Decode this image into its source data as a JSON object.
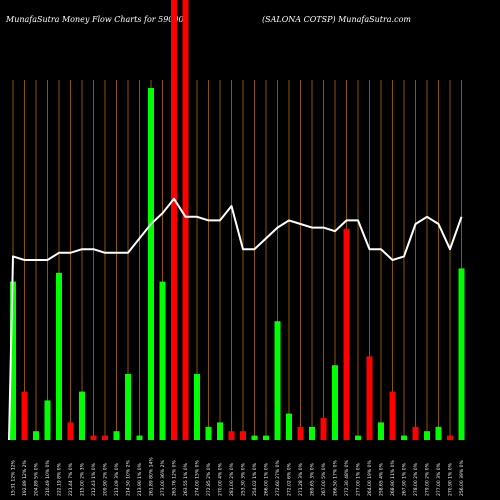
{
  "header": {
    "left_title": "MunafaSutra  Money Flow  Charts for 590006",
    "right_title": "(SALONA COTSP) MunafaSutra.com"
  },
  "colors": {
    "background": "#000000",
    "gridline": "#b36b00",
    "up_bar": "#00ff00",
    "down_bar": "#ff0000",
    "line": "#ffffff"
  },
  "chart_data": {
    "type": "bar",
    "title": "",
    "xlabel": "",
    "ylabel": "",
    "categories": [
      "15:31 12% 12%",
      "192.89 12% 2%",
      "204.89 5% 0%",
      "210.49 10% 0%",
      "222.19 8% 0%",
      "221.44 7% 0%",
      "215.00 2% 3%",
      "212.43 1% 0%",
      "209.90 2% 0%",
      "213.09 3% 0%",
      "214.50 10% 2%",
      "213.90 1% 0%",
      "261.89 80% 14%",
      "273.00 36% 2%",
      "263.76 12% 0%",
      "263.55 1% 0%",
      "274.00 15% 0%",
      "272.85 2% 0%",
      "270.00 4% 0%",
      "281.00 2% 0%",
      "253.30 3% 0%",
      "254.02 1% 0%",
      "266.00 1% 0%",
      "272.60 27% 0%",
      "272.02 6% 0%",
      "271.28 3% 0%",
      "269.65 3% 0%",
      "267.00 5% 0%",
      "266.50 17% 0%",
      "272.30 48% 0%",
      "277.00 1% 0%",
      "264.00 19% 0%",
      "258.65 4% 0%",
      "268.90 11% 0%",
      "267.90 1% 0%",
      "278.00 2% 0%",
      "279.00 2% 0%",
      "277.00 3% 0%",
      "270.90 1% 0%",
      "256.00 39% 0%"
    ],
    "values": [
      36,
      11,
      2,
      9,
      38,
      4,
      11,
      1,
      1,
      2,
      15,
      1,
      80,
      36,
      100,
      100,
      15,
      3,
      4,
      2,
      2,
      1,
      1,
      27,
      6,
      3,
      3,
      5,
      17,
      48,
      1,
      19,
      4,
      11,
      1,
      3,
      2,
      3,
      1,
      39
    ],
    "directions": [
      "up",
      "down",
      "up",
      "up",
      "up",
      "down",
      "up",
      "down",
      "down",
      "up",
      "up",
      "up",
      "up",
      "up",
      "down",
      "down",
      "up",
      "up",
      "up",
      "down",
      "down",
      "up",
      "up",
      "up",
      "up",
      "down",
      "up",
      "down",
      "up",
      "down",
      "up",
      "down",
      "up",
      "down",
      "up",
      "down",
      "up",
      "up",
      "down",
      "up"
    ],
    "ylim": [
      0,
      100
    ],
    "series": [
      {
        "name": "",
        "type": "line",
        "values": [
          51,
          50,
          50,
          50,
          52,
          52,
          53,
          53,
          52,
          52,
          52,
          56,
          60,
          63,
          67,
          62,
          62,
          61,
          61,
          65,
          53,
          53,
          56,
          59,
          61,
          60,
          59,
          59,
          58,
          61,
          61,
          53,
          53,
          50,
          51,
          60,
          62,
          60,
          53,
          62
        ],
        "ylim": [
          0,
          100
        ]
      }
    ],
    "grid": true,
    "legend": "none"
  }
}
